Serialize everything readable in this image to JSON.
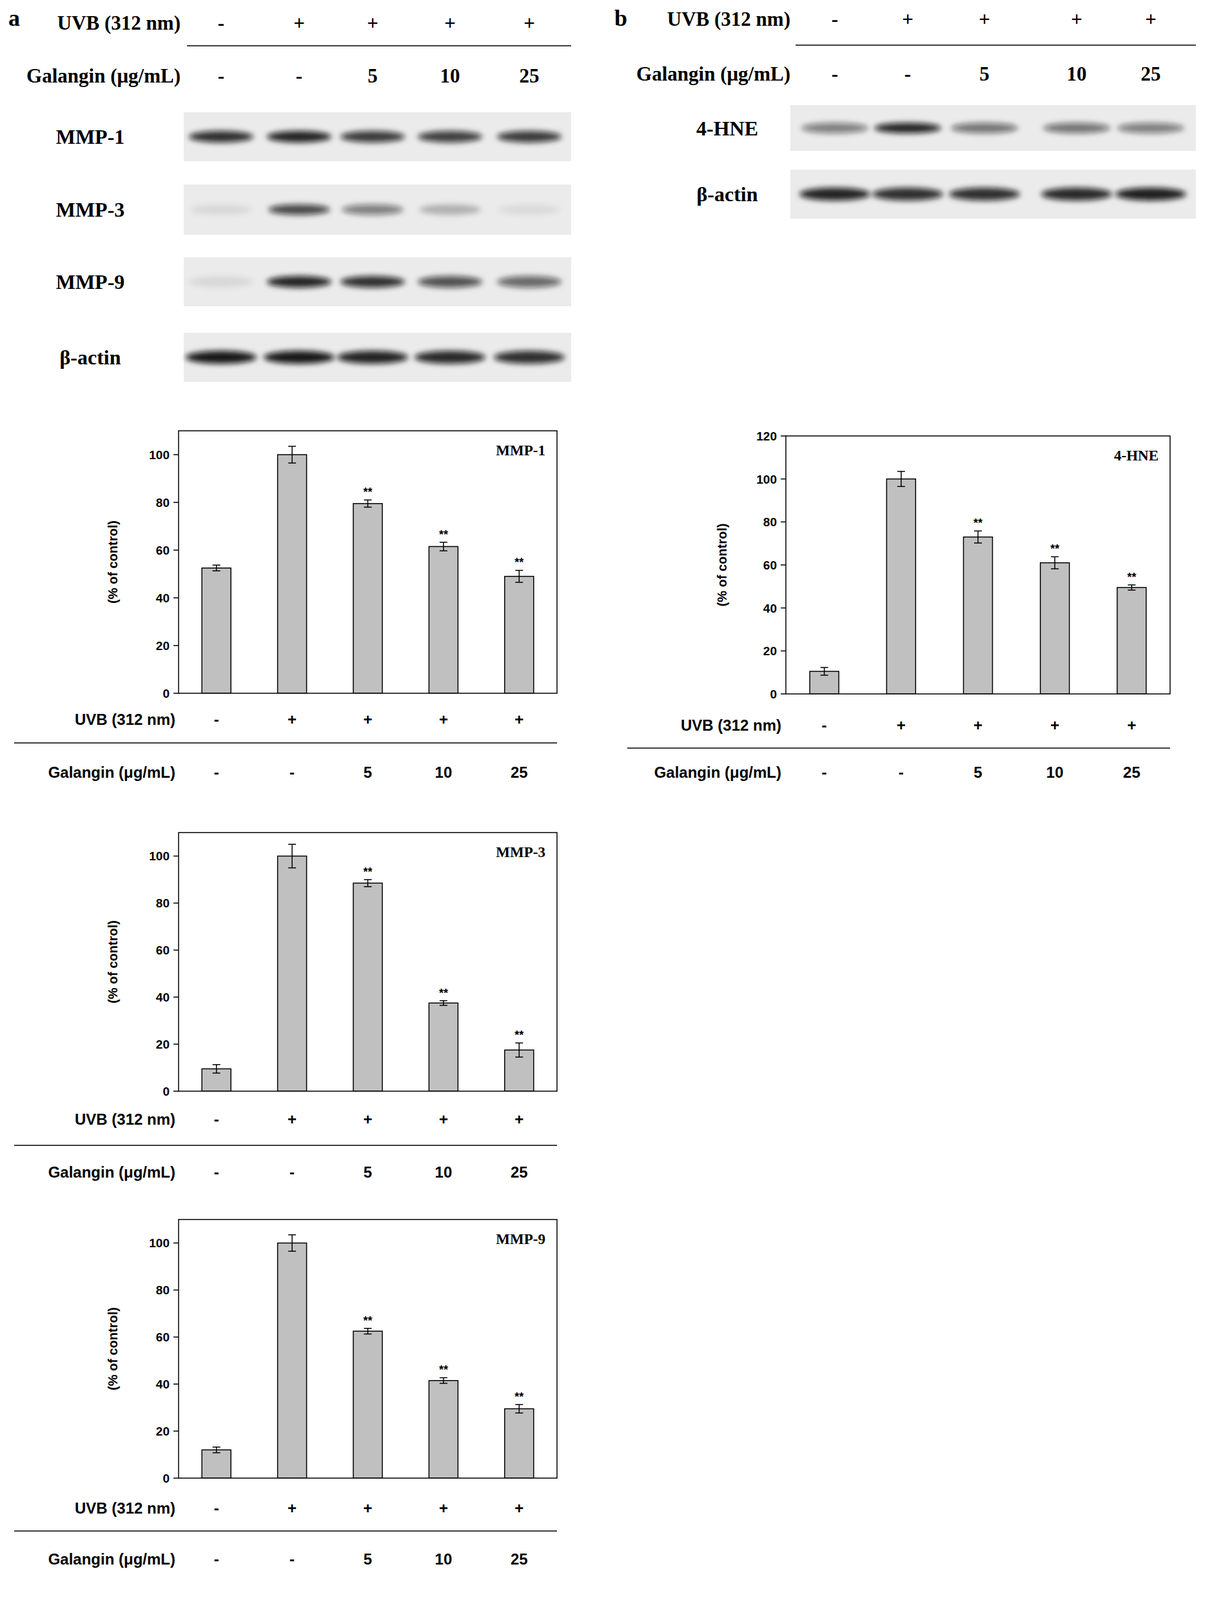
{
  "panels": [
    {
      "label": "a",
      "header": [
        {
          "label": "UVB (312 nm)",
          "values": [
            "-",
            "+",
            "+",
            "+",
            "+"
          ]
        },
        {
          "label": "Galangin (μg/mL)",
          "values": [
            "-",
            "-",
            "5",
            "10",
            "25"
          ]
        }
      ],
      "blots": [
        {
          "label": "MMP-1",
          "intensities": [
            0.85,
            0.9,
            0.8,
            0.78,
            0.8
          ]
        },
        {
          "label": "MMP-3",
          "intensities": [
            0.08,
            0.75,
            0.5,
            0.25,
            0.07
          ]
        },
        {
          "label": "MMP-9",
          "intensities": [
            0.08,
            0.9,
            0.85,
            0.7,
            0.6
          ]
        },
        {
          "label": "β-actin",
          "intensities": [
            0.95,
            0.95,
            0.9,
            0.88,
            0.85
          ]
        }
      ]
    },
    {
      "label": "b",
      "header": [
        {
          "label": "UVB (312 nm)",
          "values": [
            "-",
            "+",
            "+",
            "+",
            "+"
          ]
        },
        {
          "label": "Galangin (μg/mL)",
          "values": [
            "-",
            "-",
            "5",
            "10",
            "25"
          ]
        }
      ],
      "blots": [
        {
          "label": "4-HNE",
          "intensities": [
            0.5,
            0.9,
            0.55,
            0.55,
            0.5
          ]
        },
        {
          "label": "β-actin",
          "intensities": [
            0.9,
            0.85,
            0.85,
            0.88,
            0.92
          ]
        }
      ]
    }
  ],
  "chart_data": [
    {
      "type": "bar",
      "title": "MMP-1",
      "y_label": "(% of control)",
      "categories": [
        null,
        null,
        null,
        null,
        null
      ],
      "values": [
        52.5,
        100,
        79.5,
        61.5,
        49
      ],
      "errors": [
        1.2,
        3.5,
        1.5,
        1.8,
        2.5
      ],
      "significance": [
        null,
        null,
        "**",
        "**",
        "**"
      ],
      "color": "#c0c0c0",
      "ylim": [
        0,
        110
      ],
      "yticks": [
        0,
        20,
        40,
        60,
        80,
        100
      ],
      "x_rows": [
        {
          "label": "UVB (312 nm)",
          "values": [
            "-",
            "+",
            "+",
            "+",
            "+"
          ]
        },
        {
          "label": "Galangin (μg/mL)",
          "values": [
            "-",
            "-",
            "5",
            "10",
            "25"
          ]
        }
      ]
    },
    {
      "type": "bar",
      "title": "MMP-3",
      "y_label": "(% of control)",
      "categories": [
        null,
        null,
        null,
        null,
        null
      ],
      "values": [
        9.5,
        100,
        88.5,
        37.5,
        17.5
      ],
      "errors": [
        1.8,
        5,
        1.5,
        1,
        3
      ],
      "significance": [
        null,
        null,
        "**",
        "**",
        "**"
      ],
      "color": "#c0c0c0",
      "ylim": [
        0,
        110
      ],
      "yticks": [
        0,
        20,
        40,
        60,
        80,
        100
      ],
      "x_rows": [
        {
          "label": "UVB (312 nm)",
          "values": [
            "-",
            "+",
            "+",
            "+",
            "+"
          ]
        },
        {
          "label": "Galangin (μg/mL)",
          "values": [
            "-",
            "-",
            "5",
            "10",
            "25"
          ]
        }
      ]
    },
    {
      "type": "bar",
      "title": "MMP-9",
      "y_label": "(% of control)",
      "categories": [
        null,
        null,
        null,
        null,
        null
      ],
      "values": [
        12,
        100,
        62.5,
        41.5,
        29.5
      ],
      "errors": [
        1.2,
        3.5,
        1.2,
        1.2,
        1.8
      ],
      "significance": [
        null,
        null,
        "**",
        "**",
        "**"
      ],
      "color": "#c0c0c0",
      "ylim": [
        0,
        110
      ],
      "yticks": [
        0,
        20,
        40,
        60,
        80,
        100
      ],
      "x_rows": [
        {
          "label": "UVB (312 nm)",
          "values": [
            "-",
            "+",
            "+",
            "+",
            "+"
          ]
        },
        {
          "label": "Galangin (μg/mL)",
          "values": [
            "-",
            "-",
            "5",
            "10",
            "25"
          ]
        }
      ]
    },
    {
      "type": "bar",
      "title": "4-HNE",
      "y_label": "(% of control)",
      "categories": [
        null,
        null,
        null,
        null,
        null
      ],
      "values": [
        10.5,
        100,
        73,
        61,
        49.5
      ],
      "errors": [
        1.8,
        3.5,
        2.8,
        2.8,
        1.2
      ],
      "significance": [
        null,
        null,
        "**",
        "**",
        "**"
      ],
      "color": "#c0c0c0",
      "ylim": [
        0,
        120
      ],
      "yticks": [
        0,
        20,
        40,
        60,
        80,
        100,
        120
      ],
      "x_rows": [
        {
          "label": "UVB (312 nm)",
          "values": [
            "-",
            "+",
            "+",
            "+",
            "+"
          ]
        },
        {
          "label": "Galangin (μg/mL)",
          "values": [
            "-",
            "-",
            "5",
            "10",
            "25"
          ]
        }
      ]
    }
  ]
}
